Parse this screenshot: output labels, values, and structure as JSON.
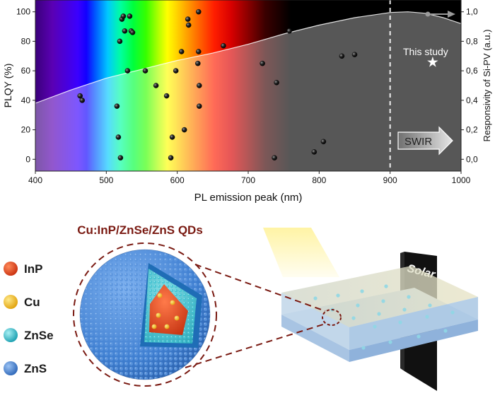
{
  "chart_data": {
    "type": "scatter",
    "xlabel": "PL emission peak (nm)",
    "ylabel": "PLQY (%)",
    "y2label": "Responsivity of Si-PV (a.u.)",
    "xlim": [
      400,
      1000
    ],
    "ylim": [
      -8,
      108
    ],
    "y2lim": [
      -0.08,
      1.08
    ],
    "x_ticks": [
      400,
      500,
      600,
      700,
      800,
      900,
      1000
    ],
    "y_ticks": [
      0,
      20,
      40,
      60,
      80,
      100
    ],
    "y2_ticks": [
      "0,0",
      "0,2",
      "0,4",
      "0,6",
      "0,8",
      "1,0"
    ],
    "y2_tick_values": [
      0,
      0.2,
      0.4,
      0.6,
      0.8,
      1.0
    ],
    "grid": false,
    "legend": "none",
    "marker_vline_x": 900,
    "points": [
      [
        463,
        43
      ],
      [
        466,
        40
      ],
      [
        515,
        36
      ],
      [
        517,
        15
      ],
      [
        520,
        1
      ],
      [
        519,
        80
      ],
      [
        522,
        95
      ],
      [
        524,
        97
      ],
      [
        526,
        87
      ],
      [
        530,
        60
      ],
      [
        533,
        97
      ],
      [
        535,
        87
      ],
      [
        537,
        86
      ],
      [
        555,
        60
      ],
      [
        570,
        50
      ],
      [
        585,
        43
      ],
      [
        591,
        1
      ],
      [
        593,
        15
      ],
      [
        598,
        60
      ],
      [
        606,
        73
      ],
      [
        610,
        20
      ],
      [
        615,
        95
      ],
      [
        616,
        91
      ],
      [
        630,
        100
      ],
      [
        630,
        73
      ],
      [
        629,
        65
      ],
      [
        631,
        50
      ],
      [
        631,
        36
      ],
      [
        665,
        77
      ],
      [
        720,
        65
      ],
      [
        737,
        1
      ],
      [
        740,
        52
      ],
      [
        758,
        87
      ],
      [
        793,
        5
      ],
      [
        806,
        12
      ],
      [
        832,
        70
      ],
      [
        850,
        71
      ]
    ],
    "response_curve_x": [
      400,
      450,
      500,
      550,
      600,
      650,
      700,
      750,
      800,
      850,
      900,
      925,
      950,
      975,
      1000
    ],
    "response_curve_y": [
      0.38,
      0.47,
      0.55,
      0.61,
      0.67,
      0.72,
      0.78,
      0.85,
      0.91,
      0.96,
      0.995,
      1.0,
      0.99,
      0.96,
      0.92
    ],
    "annotation_this_study": "This study",
    "this_study_point": [
      960,
      66
    ],
    "swir_label": "SWIR"
  },
  "diagram": {
    "title": "Cu:InP/ZnSe/ZnS QDs",
    "legend": [
      {
        "label": "InP",
        "color": "#e24a24"
      },
      {
        "label": "Cu",
        "color": "#f3c12a"
      },
      {
        "label": "ZnSe",
        "color": "#27b5c6"
      },
      {
        "label": "ZnS",
        "color": "#3f7fd1"
      }
    ],
    "device_label": "Solar cell"
  }
}
